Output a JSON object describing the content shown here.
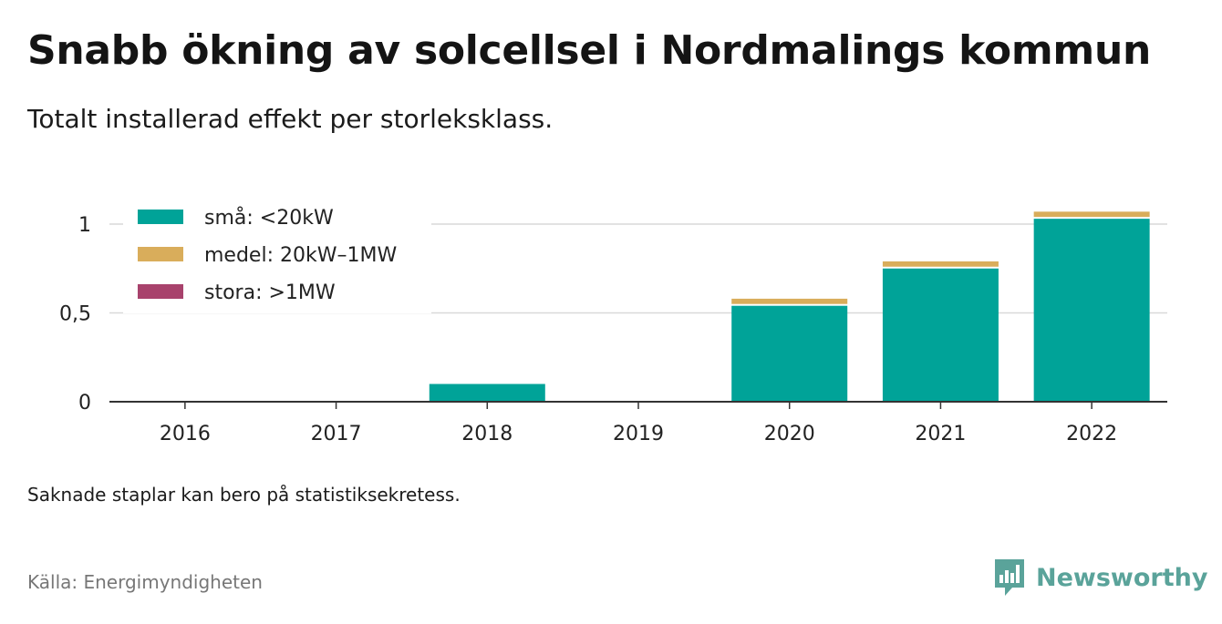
{
  "title": "Snabb ökning av solcellsel i Nordmalings kommun",
  "subtitle": "Totalt installerad effekt per storleksklass.",
  "note": "Saknade staplar kan bero på statistiksekretess.",
  "source": "Källa: Energimyndigheten",
  "brand": {
    "name": "Newsworthy",
    "icon": "newsworthy-logo-icon",
    "color": "#5aa39a"
  },
  "chart_data": {
    "type": "bar",
    "stacked": true,
    "categories": [
      "2016",
      "2017",
      "2018",
      "2019",
      "2020",
      "2021",
      "2022"
    ],
    "series": [
      {
        "name": "små: <20kW",
        "color": "#00a398",
        "values": [
          0,
          0,
          0.1,
          0,
          0.54,
          0.75,
          1.03
        ]
      },
      {
        "name": "medel: 20kW–1MW",
        "color": "#d9ad5b",
        "values": [
          0,
          0,
          0,
          0,
          0.04,
          0.04,
          0.04
        ]
      },
      {
        "name": "stora: >1MW",
        "color": "#a8426c",
        "values": [
          0,
          0,
          0,
          0,
          0,
          0,
          0
        ]
      }
    ],
    "ylim": [
      0,
      1.08
    ],
    "yticks": [
      0,
      0.5,
      1
    ],
    "ytick_labels": [
      "0",
      "0,5",
      "1"
    ],
    "grid": true,
    "legend_position": "top-left"
  }
}
